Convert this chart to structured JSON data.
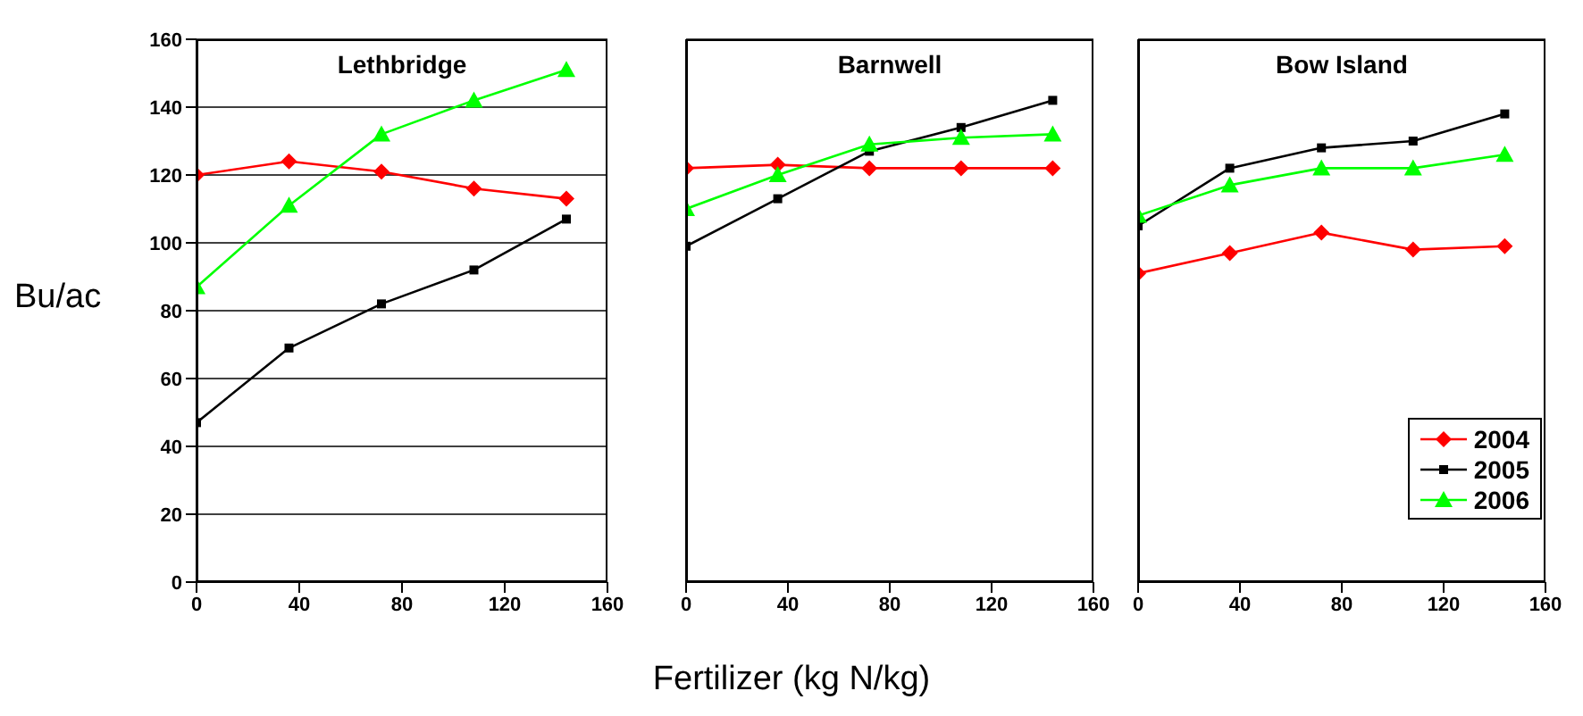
{
  "chart_data": [
    {
      "type": "line",
      "title": "Lethbridge",
      "ylabel": "Bu/ac",
      "x": [
        0,
        36,
        72,
        108,
        144
      ],
      "xlim": [
        0,
        160
      ],
      "xticks": [
        0,
        40,
        80,
        120,
        160
      ],
      "ylim": [
        0,
        160
      ],
      "yticks": [
        0,
        20,
        40,
        60,
        80,
        100,
        120,
        140,
        160
      ],
      "grid": "y",
      "legend": false,
      "series": [
        {
          "color": "#ff0000",
          "marker": "diamond",
          "values": [
            120,
            124,
            121,
            116,
            113
          ]
        },
        {
          "color": "#000000",
          "marker": "square",
          "values": [
            47,
            69,
            82,
            92,
            107
          ]
        },
        {
          "color": "#00ff00",
          "marker": "triangle",
          "values": [
            87,
            111,
            132,
            142,
            151
          ]
        }
      ]
    },
    {
      "type": "line",
      "title": "Barnwell",
      "xlabel": "Fertilizer (kg N/kg)",
      "x": [
        0,
        36,
        72,
        108,
        144
      ],
      "xlim": [
        0,
        160
      ],
      "xticks": [
        0,
        40,
        80,
        120,
        160
      ],
      "ylim": [
        0,
        160
      ],
      "yticks": [
        0,
        20,
        40,
        60,
        80,
        100,
        120,
        140,
        160
      ],
      "grid": "y",
      "legend": false,
      "tick_labels": "x",
      "series": [
        {
          "color": "#ff0000",
          "marker": "diamond",
          "values": [
            122,
            123,
            122,
            122,
            122
          ]
        },
        {
          "color": "#000000",
          "marker": "square",
          "values": [
            99,
            113,
            127,
            134,
            142
          ]
        },
        {
          "color": "#00ff00",
          "marker": "triangle",
          "values": [
            110,
            120,
            129,
            131,
            132
          ]
        }
      ]
    },
    {
      "type": "line",
      "title": "Bow Island",
      "x": [
        0,
        36,
        72,
        108,
        144
      ],
      "xlim": [
        0,
        160
      ],
      "xticks": [
        0,
        40,
        80,
        120,
        160
      ],
      "ylim": [
        0,
        160
      ],
      "yticks": [
        0,
        20,
        40,
        60,
        80,
        100,
        120,
        140,
        160
      ],
      "grid": "y",
      "legend": "bottom right",
      "tick_labels": "x",
      "series": [
        {
          "name": "2004",
          "color": "#ff0000",
          "marker": "diamond",
          "values": [
            91,
            97,
            103,
            98,
            99
          ]
        },
        {
          "name": "2005",
          "color": "#000000",
          "marker": "square",
          "values": [
            105,
            122,
            128,
            130,
            138
          ]
        },
        {
          "name": "2006",
          "color": "#00ff00",
          "marker": "triangle",
          "values": [
            108,
            117,
            122,
            122,
            126
          ]
        }
      ]
    }
  ]
}
